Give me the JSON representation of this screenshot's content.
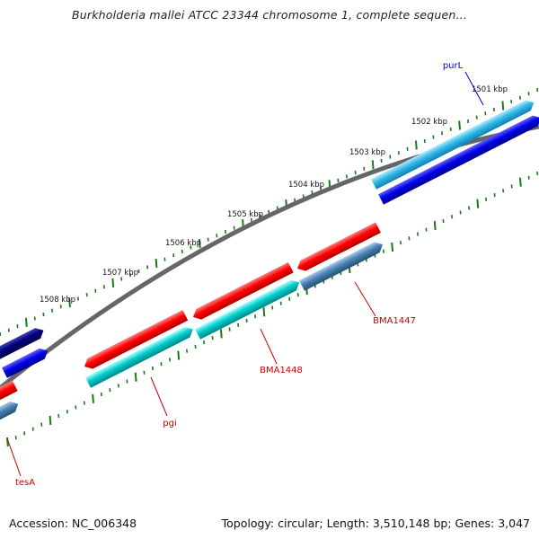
{
  "title": "Burkholderia mallei ATCC 23344 chromosome 1, complete sequen...",
  "footer": {
    "accession": "Accession: NC_006348",
    "summary": "Topology: circular; Length: 3,510,148 bp; Genes: 3,047"
  },
  "ruler": {
    "labels": [
      "1501 kbp",
      "1502 kbp",
      "1503 kbp",
      "1504 kbp",
      "1505 kbp",
      "1506 kbp",
      "1507 kbp",
      "1508 kbp"
    ]
  },
  "gene_labels": [
    {
      "name": "purL",
      "strand": "forward"
    },
    {
      "name": "BMA1447",
      "strand": "reverse"
    },
    {
      "name": "BMA1448",
      "strand": "reverse"
    },
    {
      "name": "pgi",
      "strand": "reverse"
    },
    {
      "name": "tesA",
      "strand": "reverse"
    }
  ],
  "colors": {
    "backbone": "#777777",
    "tick": "#1a7a1a",
    "forward_label": "#0000cc",
    "reverse_label": "#cc0000",
    "cds_red": "#ff0000",
    "cds_cyan": "#00c8c8",
    "cds_lightblue": "#33b5e8",
    "cds_blue": "#0000e0",
    "cds_navy": "#000080",
    "cds_steel": "#4682b4"
  }
}
